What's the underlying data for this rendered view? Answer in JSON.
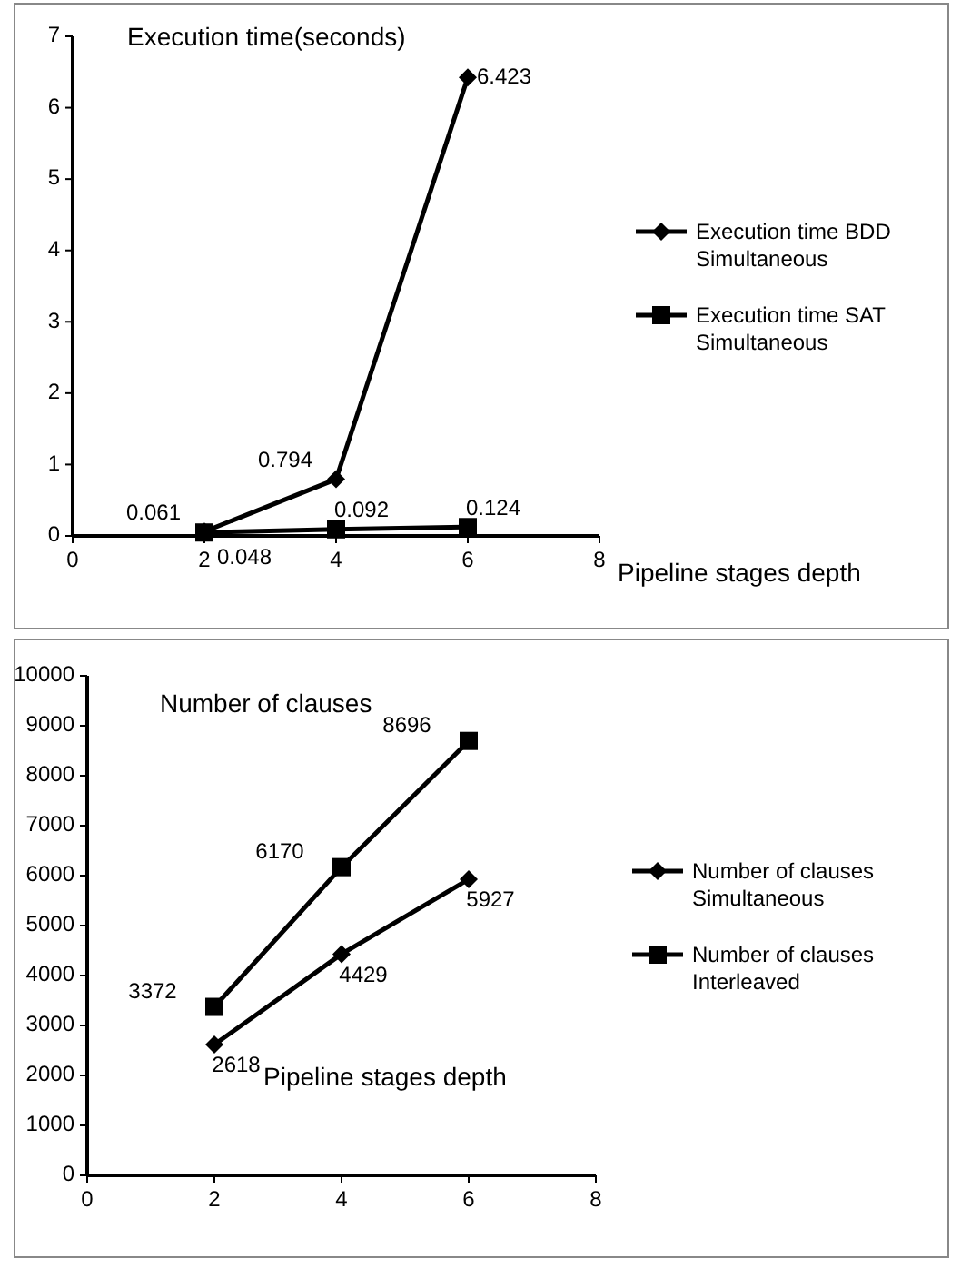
{
  "chart_data": [
    {
      "type": "line",
      "ylabel": "Execution time(seconds)",
      "xlabel": "Pipeline stages depth",
      "x": [
        2,
        4,
        6
      ],
      "xlim": [
        0,
        8
      ],
      "xticks": [
        0,
        2,
        4,
        6,
        8
      ],
      "ylim": [
        0,
        7
      ],
      "yticks": [
        0,
        1,
        2,
        3,
        4,
        5,
        6,
        7
      ],
      "grid": false,
      "legend": "right",
      "data_labels": true,
      "series": [
        {
          "name": "Execution time BDD Simultaneous",
          "color": "#000000",
          "marker": "diamond",
          "values": [
            0.061,
            0.794,
            6.423
          ]
        },
        {
          "name": "Execution time SAT Simultaneous",
          "color": "#000000",
          "marker": "square",
          "values": [
            0.048,
            0.092,
            0.124
          ]
        }
      ]
    },
    {
      "type": "line",
      "ylabel": "Number of clauses",
      "xlabel": "Pipeline stages depth",
      "x": [
        2,
        4,
        6
      ],
      "xlim": [
        0,
        8
      ],
      "xticks": [
        0,
        2,
        4,
        6,
        8
      ],
      "ylim": [
        0,
        10000
      ],
      "yticks": [
        0,
        1000,
        2000,
        3000,
        4000,
        5000,
        6000,
        7000,
        8000,
        9000,
        10000
      ],
      "grid": false,
      "legend": "right",
      "data_labels": true,
      "series": [
        {
          "name": "Number of clauses Simultaneous",
          "color": "#000000",
          "marker": "diamond",
          "values": [
            2618,
            4429,
            5927
          ]
        },
        {
          "name": "Number of clauses Interleaved",
          "color": "#000000",
          "marker": "square",
          "values": [
            3372,
            6170,
            8696
          ]
        }
      ]
    }
  ]
}
